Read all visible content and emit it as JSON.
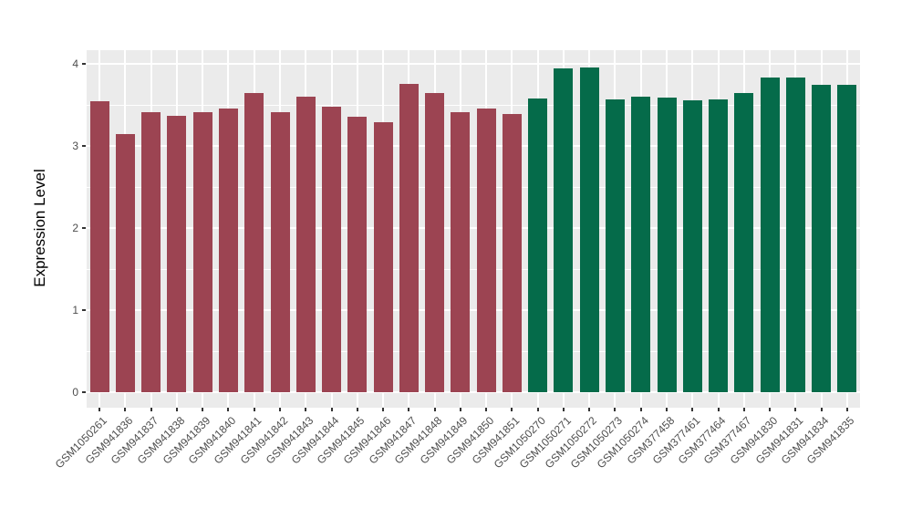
{
  "chart_data": {
    "type": "bar",
    "title": "",
    "xlabel": "",
    "ylabel": "Expression Level",
    "ylim": [
      -0.19,
      4.17
    ],
    "yticks": [
      0,
      1,
      2,
      3,
      4
    ],
    "grid": "on",
    "legend": "none",
    "groups": [
      "maroon",
      "green"
    ],
    "samples": [
      {
        "label": "GSM1050261",
        "value": 3.54,
        "group": "maroon"
      },
      {
        "label": "GSM941836",
        "value": 3.15,
        "group": "maroon"
      },
      {
        "label": "GSM941837",
        "value": 3.41,
        "group": "maroon"
      },
      {
        "label": "GSM941838",
        "value": 3.37,
        "group": "maroon"
      },
      {
        "label": "GSM941839",
        "value": 3.41,
        "group": "maroon"
      },
      {
        "label": "GSM941840",
        "value": 3.46,
        "group": "maroon"
      },
      {
        "label": "GSM941841",
        "value": 3.64,
        "group": "maroon"
      },
      {
        "label": "GSM941842",
        "value": 3.41,
        "group": "maroon"
      },
      {
        "label": "GSM941843",
        "value": 3.6,
        "group": "maroon"
      },
      {
        "label": "GSM941844",
        "value": 3.48,
        "group": "maroon"
      },
      {
        "label": "GSM941845",
        "value": 3.36,
        "group": "maroon"
      },
      {
        "label": "GSM941846",
        "value": 3.29,
        "group": "maroon"
      },
      {
        "label": "GSM941847",
        "value": 3.76,
        "group": "maroon"
      },
      {
        "label": "GSM941848",
        "value": 3.64,
        "group": "maroon"
      },
      {
        "label": "GSM941849",
        "value": 3.41,
        "group": "maroon"
      },
      {
        "label": "GSM941850",
        "value": 3.46,
        "group": "maroon"
      },
      {
        "label": "GSM941851",
        "value": 3.39,
        "group": "maroon"
      },
      {
        "label": "GSM1050270",
        "value": 3.58,
        "group": "green"
      },
      {
        "label": "GSM1050271",
        "value": 3.94,
        "group": "green"
      },
      {
        "label": "GSM1050272",
        "value": 3.96,
        "group": "green"
      },
      {
        "label": "GSM1050273",
        "value": 3.57,
        "group": "green"
      },
      {
        "label": "GSM1050274",
        "value": 3.6,
        "group": "green"
      },
      {
        "label": "GSM377458",
        "value": 3.59,
        "group": "green"
      },
      {
        "label": "GSM377461",
        "value": 3.56,
        "group": "green"
      },
      {
        "label": "GSM377464",
        "value": 3.57,
        "group": "green"
      },
      {
        "label": "GSM377467",
        "value": 3.64,
        "group": "green"
      },
      {
        "label": "GSM941830",
        "value": 3.83,
        "group": "green"
      },
      {
        "label": "GSM941831",
        "value": 3.83,
        "group": "green"
      },
      {
        "label": "GSM941834",
        "value": 3.74,
        "group": "green"
      },
      {
        "label": "GSM941835",
        "value": 3.74,
        "group": "green"
      }
    ]
  },
  "colors": {
    "maroon": "#9C4452",
    "green": "#056B4A",
    "panel_bg": "#EBEBEB",
    "gridline": "#FFFFFF",
    "axis_text": "#4D4D4D",
    "axis_title": "#000000",
    "tick_mark": "#333333"
  }
}
